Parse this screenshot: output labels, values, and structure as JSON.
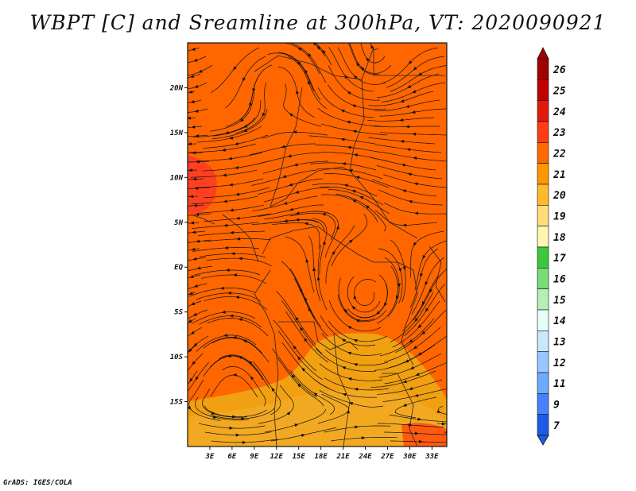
{
  "title": "WBPT [C] and Sreamline at 300hPa, VT: 2020090921",
  "credit": "GrADS: IGES/COLA",
  "map": {
    "lon_range": [
      0,
      35
    ],
    "lat_range": [
      -20,
      25
    ],
    "lat_ticks": [
      {
        "label": "20N",
        "lat": 20
      },
      {
        "label": "15N",
        "lat": 15
      },
      {
        "label": "10N",
        "lat": 10
      },
      {
        "label": "5N",
        "lat": 5
      },
      {
        "label": "EQ",
        "lat": 0
      },
      {
        "label": "5S",
        "lat": -5
      },
      {
        "label": "10S",
        "lat": -10
      },
      {
        "label": "15S",
        "lat": -15
      }
    ],
    "lon_ticks": [
      {
        "label": "3E",
        "lon": 3
      },
      {
        "label": "6E",
        "lon": 6
      },
      {
        "label": "9E",
        "lon": 9
      },
      {
        "label": "12E",
        "lon": 12
      },
      {
        "label": "15E",
        "lon": 15
      },
      {
        "label": "18E",
        "lon": 18
      },
      {
        "label": "21E",
        "lon": 21
      },
      {
        "label": "24E",
        "lon": 24
      },
      {
        "label": "27E",
        "lon": 27
      },
      {
        "label": "30E",
        "lon": 30
      },
      {
        "label": "33E",
        "lon": 33
      }
    ],
    "dominant_fill_color": "#ff6600",
    "southern_fill_color": "#f0a010",
    "west_coast_fill_color": "#ff4020"
  },
  "colorbar": {
    "labels": [
      "26",
      "25",
      "24",
      "23",
      "22",
      "21",
      "20",
      "19",
      "18",
      "17",
      "16",
      "15",
      "14",
      "13",
      "12",
      "11",
      "9",
      "7"
    ],
    "colors": [
      "#a00000",
      "#c00000",
      "#e01a0a",
      "#ff3c14",
      "#ff6a00",
      "#ff9800",
      "#ffba2c",
      "#ffdc78",
      "#fff5b4",
      "#3cc83c",
      "#78dc78",
      "#b4f0b4",
      "#e6fff6",
      "#c8e8ff",
      "#96c8ff",
      "#6eaaff",
      "#4682ff",
      "#1e5ae6"
    ]
  }
}
